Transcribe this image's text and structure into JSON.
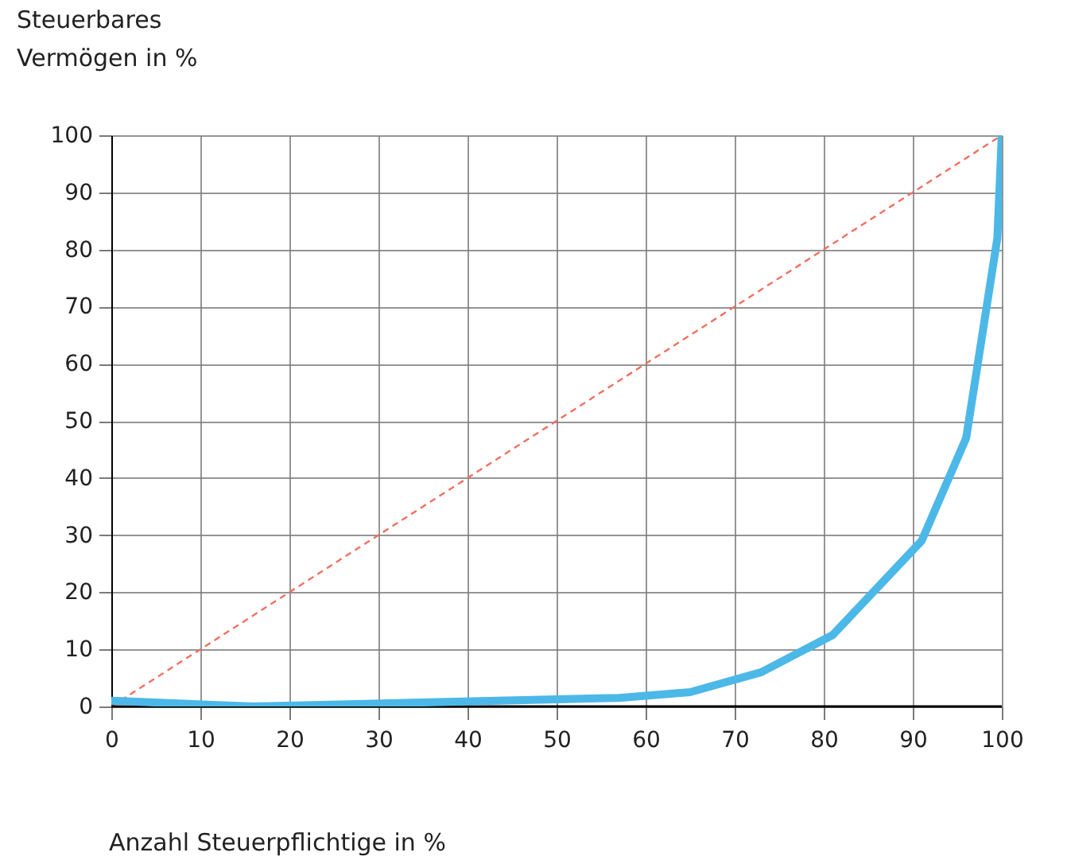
{
  "chart_data": {
    "type": "line",
    "xlabel": "Anzahl Steuerpflichtige in %",
    "ylabel": "Steuerbares Vermögen in %",
    "series": [
      {
        "color": "#f07060",
        "line_style": "dashed",
        "x": [
          0,
          100
        ],
        "values": [
          0,
          100
        ]
      },
      {
        "color": "#4cb8e8",
        "line_style": "solid",
        "x": [
          0,
          16,
          57,
          65,
          73,
          81,
          91,
          96,
          99.5,
          100
        ],
        "values": [
          1,
          0,
          1.5,
          2.5,
          6,
          12.5,
          29,
          47,
          82,
          100
        ]
      }
    ],
    "xlim": [
      0,
      100
    ],
    "xticks": [
      0,
      10,
      20,
      30,
      40,
      50,
      60,
      70,
      80,
      90,
      100
    ],
    "ylim": [
      0,
      100
    ],
    "yticks": [
      0,
      10,
      20,
      30,
      40,
      50,
      60,
      70,
      80,
      90,
      100
    ],
    "grid": true,
    "marker": "none"
  }
}
